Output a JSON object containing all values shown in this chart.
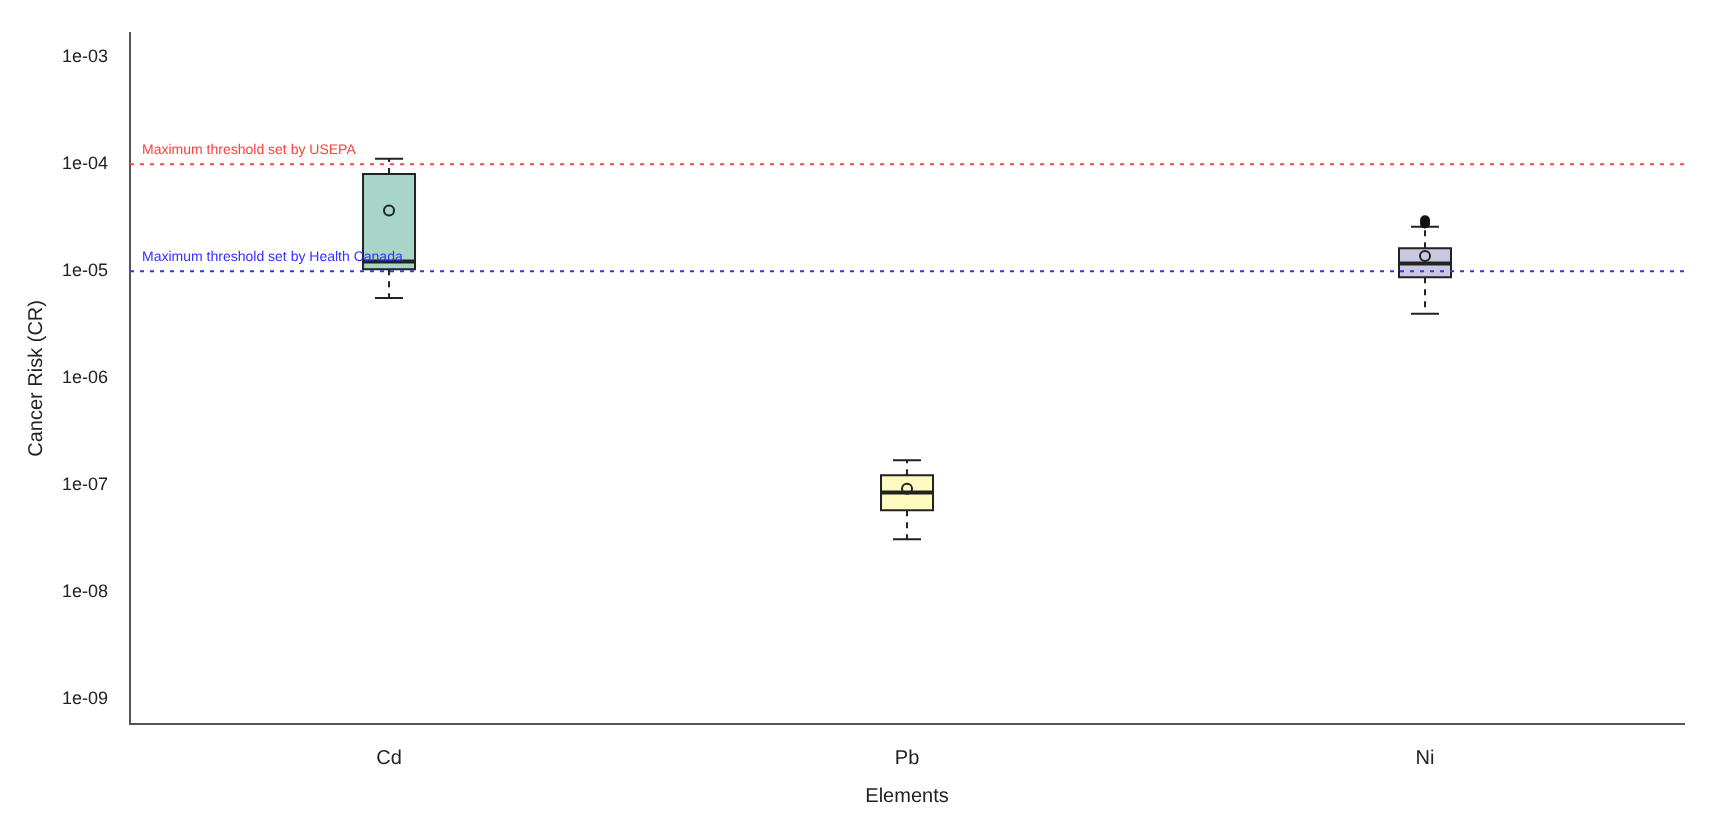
{
  "chart_data": {
    "type": "box",
    "xlabel": "Elements",
    "ylabel": "Cancer Risk (CR)",
    "categories": [
      "Cd",
      "Pb",
      "Ni"
    ],
    "colors": [
      "#a8d5c8",
      "#fffac0",
      "#c8c8e0"
    ],
    "boxes": [
      {
        "low": 5.6e-06,
        "q1": 1.04e-05,
        "median": 1.23e-05,
        "q3": 8.1e-05,
        "high": 0.000113,
        "mean": 3.7e-05
      },
      {
        "low": 3.1e-08,
        "q1": 5.8e-08,
        "median": 8.5e-08,
        "q3": 1.23e-07,
        "high": 1.7e-07,
        "mean": 9.2e-08
      },
      {
        "low": 4e-06,
        "q1": 8.8e-06,
        "median": 1.18e-05,
        "q3": 1.64e-05,
        "high": 2.6e-05,
        "mean": 1.39e-05,
        "outliers": [
          2.8e-05,
          3e-05
        ]
      }
    ],
    "log": true,
    "ylim": [
      5.8e-10,
      0.0017
    ],
    "yticks": [
      {
        "value": 1e-09,
        "label": "1e-09"
      },
      {
        "value": 1e-08,
        "label": "1e-08"
      },
      {
        "value": 1e-07,
        "label": "1e-07"
      },
      {
        "value": 1e-06,
        "label": "1e-06"
      },
      {
        "value": 1e-05,
        "label": "1e-05"
      },
      {
        "value": 0.0001,
        "label": "1e-04"
      },
      {
        "value": 0.001,
        "label": "1e-03"
      }
    ],
    "ref_lines": [
      {
        "axis": "y",
        "value": 0.0001,
        "label": "Maximum threshold set by USEPA",
        "color": "#ff4040",
        "line_style": "dotted"
      },
      {
        "axis": "y",
        "value": 1e-05,
        "label": "Maximum threshold set by Health Canada",
        "color": "#3030ff",
        "line_style": "dotted"
      }
    ],
    "grid": false,
    "legend": false
  }
}
